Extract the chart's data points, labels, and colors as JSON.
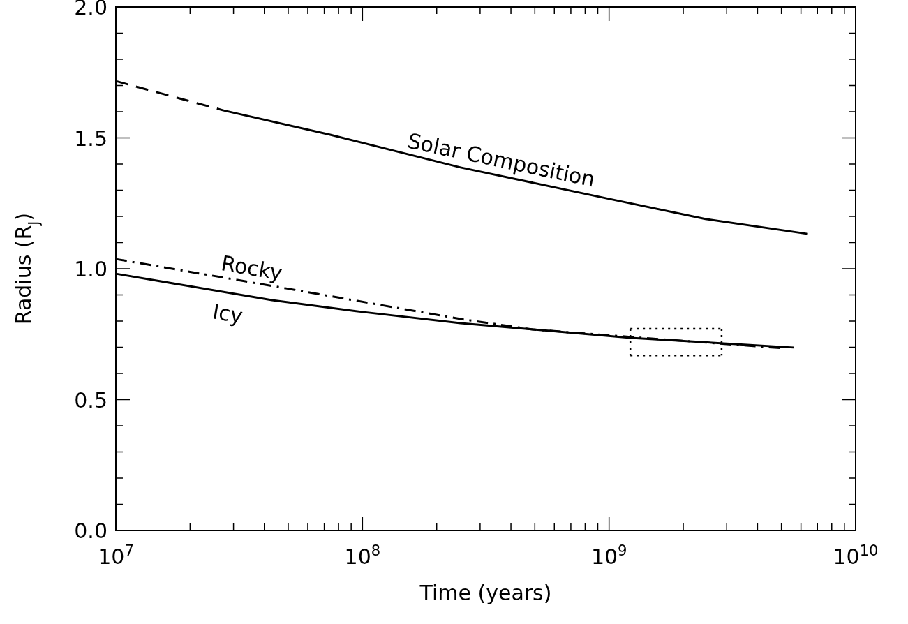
{
  "chart_data": {
    "type": "line",
    "xlabel": "Time (years)",
    "ylabel": "Radius (R$_{J}$)",
    "log": "x",
    "grid": false,
    "xlim": [
      10000000.0,
      10000000000.0
    ],
    "xticks": [
      {
        "value": 10000000.0,
        "label": "10$^{7}$"
      },
      {
        "value": 20000000.0,
        "label": null
      },
      {
        "value": 30000000.0,
        "label": null
      },
      {
        "value": 40000000.0,
        "label": null
      },
      {
        "value": 50000000.0,
        "label": null
      },
      {
        "value": 60000000.0,
        "label": null
      },
      {
        "value": 70000000.0,
        "label": null
      },
      {
        "value": 80000000.0,
        "label": null
      },
      {
        "value": 90000000.0,
        "label": null
      },
      {
        "value": 100000000.0,
        "label": "10$^{8}$"
      },
      {
        "value": 200000000.0,
        "label": null
      },
      {
        "value": 300000000.0,
        "label": null
      },
      {
        "value": 400000000.0,
        "label": null
      },
      {
        "value": 500000000.0,
        "label": null
      },
      {
        "value": 600000000.0,
        "label": null
      },
      {
        "value": 700000000.0,
        "label": null
      },
      {
        "value": 800000000.0,
        "label": null
      },
      {
        "value": 900000000.0,
        "label": null
      },
      {
        "value": 1000000000.0,
        "label": "10$^{9}$"
      },
      {
        "value": 2000000000.0,
        "label": null
      },
      {
        "value": 3000000000.0,
        "label": null
      },
      {
        "value": 4000000000.0,
        "label": null
      },
      {
        "value": 5000000000.0,
        "label": null
      },
      {
        "value": 6000000000.0,
        "label": null
      },
      {
        "value": 7000000000.0,
        "label": null
      },
      {
        "value": 8000000000.0,
        "label": null
      },
      {
        "value": 9000000000.0,
        "label": null
      },
      {
        "value": 10000000000.0,
        "label": "10$^{10}$"
      }
    ],
    "ylim": [
      0,
      2
    ],
    "yticks": [
      {
        "value": 0,
        "label": "0.0"
      },
      {
        "value": 0.1,
        "label": null
      },
      {
        "value": 0.2,
        "label": null
      },
      {
        "value": 0.3,
        "label": null
      },
      {
        "value": 0.4,
        "label": null
      },
      {
        "value": 0.5,
        "label": "0.5"
      },
      {
        "value": 0.6,
        "label": null
      },
      {
        "value": 0.7,
        "label": null
      },
      {
        "value": 0.8,
        "label": null
      },
      {
        "value": 0.9,
        "label": null
      },
      {
        "value": 1,
        "label": "1.0"
      },
      {
        "value": 1.1,
        "label": null
      },
      {
        "value": 1.2,
        "label": null
      },
      {
        "value": 1.3,
        "label": null
      },
      {
        "value": 1.4,
        "label": null
      },
      {
        "value": 1.5,
        "label": "1.5"
      },
      {
        "value": 1.6,
        "label": null
      },
      {
        "value": 1.7,
        "label": null
      },
      {
        "value": 1.8,
        "label": null
      },
      {
        "value": 1.9,
        "label": null
      },
      {
        "value": 2,
        "label": "2.0"
      }
    ],
    "series": [
      {
        "color": "#000000",
        "line_style": "dashed",
        "x": [
          10000000.0,
          27300000.0
        ],
        "values": [
          1.717,
          1.605
        ]
      },
      {
        "name": "Solar Composition",
        "color": "#000000",
        "line_style": "solid",
        "x": [
          27300000.0,
          74000000.0,
          250000000.0,
          1000000000.0,
          2460000000.0,
          6400000000.0
        ],
        "values": [
          1.605,
          1.512,
          1.387,
          1.267,
          1.19,
          1.133
        ]
      },
      {
        "name": "Rocky",
        "color": "#000000",
        "line_style": "dashdot",
        "x": [
          10000000.0,
          49000000.0,
          250000000.0,
          490000000.0,
          1200000000.0,
          5100000000.0
        ],
        "values": [
          1.037,
          0.925,
          0.808,
          0.768,
          0.74,
          0.696
        ]
      },
      {
        "name": "Icy",
        "color": "#000000",
        "line_style": "solid",
        "x": [
          10000000.0,
          43000000.0,
          100000000.0,
          250000000.0,
          1220000000.0,
          5600000000.0
        ],
        "values": [
          0.981,
          0.88,
          0.835,
          0.792,
          0.736,
          0.699
        ]
      },
      {
        "color": "#000000",
        "line_style": "dotted",
        "x": [
          1220000000.0,
          2860000000.0
        ],
        "values": [
          0.771,
          0.771
        ]
      },
      {
        "color": "#000000",
        "line_style": "dotted",
        "x": [
          2860000000.0,
          2860000000.0
        ],
        "values": [
          0.771,
          0.669
        ]
      },
      {
        "color": "#000000",
        "line_style": "dotted",
        "x": [
          1220000000.0,
          2860000000.0
        ],
        "values": [
          0.669,
          0.669
        ]
      },
      {
        "color": "#000000",
        "line_style": "dotted",
        "x": [
          1220000000.0,
          1220000000.0
        ],
        "values": [
          0.771,
          0.669
        ]
      }
    ]
  }
}
